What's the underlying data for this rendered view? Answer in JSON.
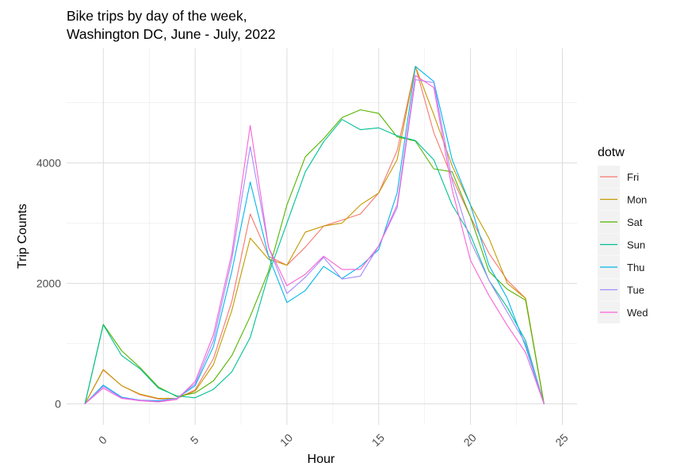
{
  "chart_data": {
    "type": "line",
    "title": "Bike trips by day of the week,",
    "subtitle": "Washington DC, June - July, 2022",
    "xlabel": "Hour",
    "ylabel": "Trip Counts",
    "xlim": [
      -2,
      25.8
    ],
    "ylim": [
      -350,
      5900
    ],
    "xticks": [
      0,
      5,
      10,
      15,
      20,
      25
    ],
    "xtick_labels": [
      "0",
      "5",
      "10",
      "15",
      "20",
      "25"
    ],
    "yticks": [
      0,
      2000,
      4000
    ],
    "ytick_labels": [
      "0",
      "2000",
      "4000"
    ],
    "grid": true,
    "legend": {
      "title": "dotw",
      "placement": "right"
    },
    "x": [
      -1,
      0,
      1,
      2,
      3,
      4,
      5,
      6,
      7,
      8,
      9,
      10,
      11,
      12,
      13,
      14,
      15,
      16,
      17,
      18,
      19,
      20,
      21,
      22,
      23,
      24
    ],
    "series": [
      {
        "name": "Fri",
        "color": "#F8766D",
        "values": [
          0,
          560,
          300,
          150,
          80,
          90,
          230,
          750,
          1700,
          3150,
          2450,
          2300,
          2600,
          2950,
          3050,
          3150,
          3500,
          4200,
          5600,
          4500,
          3750,
          3100,
          2500,
          2050,
          1750,
          0
        ]
      },
      {
        "name": "Mon",
        "color": "#C49A00",
        "values": [
          0,
          570,
          300,
          160,
          90,
          90,
          210,
          650,
          1550,
          2750,
          2400,
          2300,
          2850,
          2950,
          3000,
          3300,
          3500,
          4050,
          5600,
          4800,
          3950,
          3300,
          2750,
          2000,
          1750,
          0
        ]
      },
      {
        "name": "Sat",
        "color": "#53B400",
        "values": [
          0,
          1320,
          880,
          600,
          280,
          120,
          180,
          380,
          800,
          1450,
          2200,
          3300,
          4100,
          4400,
          4750,
          4880,
          4820,
          4430,
          4360,
          3900,
          3850,
          3100,
          2200,
          1900,
          1720,
          0
        ]
      },
      {
        "name": "Sun",
        "color": "#00C094",
        "values": [
          0,
          1310,
          800,
          580,
          260,
          130,
          100,
          240,
          530,
          1100,
          2150,
          3000,
          3850,
          4350,
          4720,
          4550,
          4580,
          4450,
          4370,
          4050,
          3300,
          2800,
          2050,
          1600,
          1050,
          0
        ]
      },
      {
        "name": "Thu",
        "color": "#00B6EB",
        "values": [
          0,
          310,
          110,
          60,
          50,
          90,
          300,
          950,
          2200,
          3680,
          2450,
          1680,
          1880,
          2280,
          2080,
          2280,
          2560,
          3500,
          5600,
          5350,
          4050,
          3300,
          2300,
          1750,
          950,
          0
        ]
      },
      {
        "name": "Tue",
        "color": "#A58AFF",
        "values": [
          0,
          290,
          100,
          60,
          40,
          90,
          330,
          1050,
          2400,
          4270,
          2600,
          1830,
          2100,
          2430,
          2070,
          2120,
          2620,
          3250,
          5380,
          5330,
          3700,
          2700,
          2050,
          1520,
          1000,
          0
        ]
      },
      {
        "name": "Wed",
        "color": "#FB61D7",
        "values": [
          0,
          260,
          90,
          50,
          30,
          70,
          370,
          1150,
          2500,
          4620,
          2600,
          1960,
          2150,
          2450,
          2230,
          2230,
          2620,
          3300,
          5450,
          5250,
          3550,
          2380,
          1800,
          1300,
          850,
          0
        ]
      }
    ]
  }
}
